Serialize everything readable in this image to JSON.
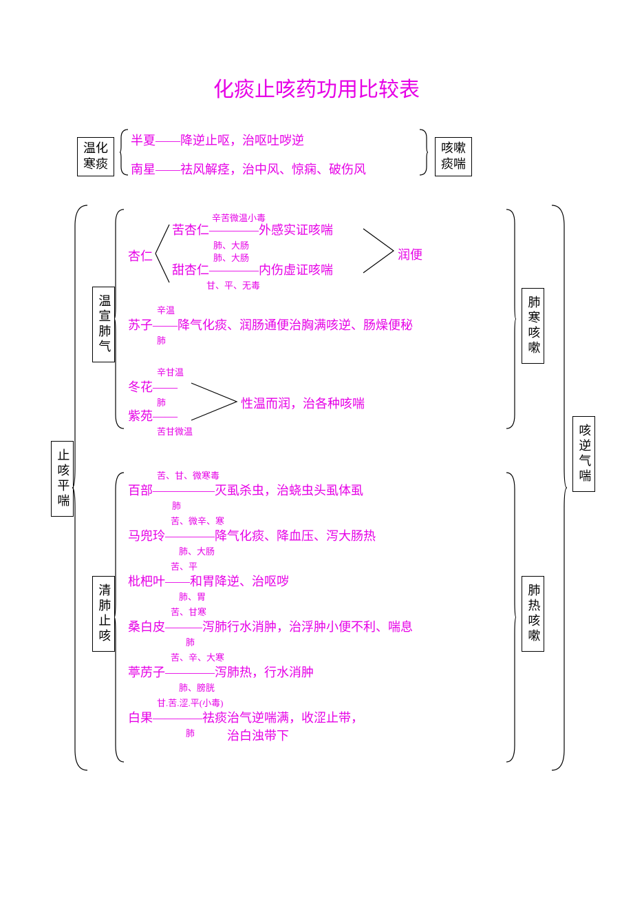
{
  "title": {
    "text": "化痰止咳药功用比较表",
    "fontsize": 30,
    "color": "#e600e6"
  },
  "colors": {
    "accent": "#e600e6",
    "text": "#000000",
    "border": "#000000",
    "bg": "#ffffff"
  },
  "fonts": {
    "body": 18,
    "sup": 13,
    "title": 30
  },
  "boxes": {
    "wenhua": "温化\n寒痰",
    "zhike": "止咳平喘",
    "wenxuan": "温宣肺气",
    "qingfei": "清肺止咳",
    "kesou": "咳嗽\n痰喘",
    "keni": "咳逆气喘",
    "feihan": "肺寒咳嗽",
    "feire": "肺热咳嗽"
  },
  "lines": {
    "banxia": "半夏——降逆止呕，治呕吐哕逆",
    "nanxing": "南星——祛风解痉，治中风、惊痫、破伤风",
    "xingren": "杏仁",
    "kuxingren": "苦杏仁————外感实证咳喘",
    "tianxingren": "甜杏仁————内伤虚证咳喘",
    "runbian": "润便",
    "suzi": "苏子——降气化痰、润肠通便治胸满咳逆、肠燥便秘",
    "donghua": "冬花——",
    "ziyuan": "紫苑——",
    "wenrun": "性温而润，治各种咳喘",
    "baibu": "百部—————灭虱杀虫，治蛲虫头虱体虱",
    "madouling": "马兜玲————降气化痰、降血压、泻大肠热",
    "pipaye": "枇杷叶——和胃降逆、治呕哕",
    "sangbaipi": "桑白皮———泻肺行水消肿，治浮肿小便不利、喘息",
    "tinglizi": "葶苈子————泻肺热，行水消肿",
    "baiguo": "白果————祛痰治气逆喘满，收涩止带，",
    "baiguo2": "治白浊带下"
  },
  "sups": {
    "kuxr": "辛苦微温小毒",
    "fei_dachang1": "肺、大肠",
    "fei_dachang2": "肺、大肠",
    "tianxr": "甘、平、无毒",
    "suzi_p": "辛温",
    "suzi_m": "肺",
    "donghua_p": "辛甘温",
    "donghua_m": "肺",
    "ziyuan_p": "苦甘微温",
    "baibu_p": "苦、甘、微寒毒",
    "baibu_m": "肺",
    "mdl_p": "苦、微辛、寒",
    "mdl_m": "肺、大肠",
    "ppy_p": "苦、平",
    "ppy_m": "肺、胃",
    "sbp_p": "苦、甘寒",
    "sbp_m": "肺",
    "tlz_p": "苦、辛、大寒",
    "tlz_m": "肺、膀胱",
    "bg_p": "甘.苦.涩.平(小毒)",
    "bg_m": "肺"
  }
}
